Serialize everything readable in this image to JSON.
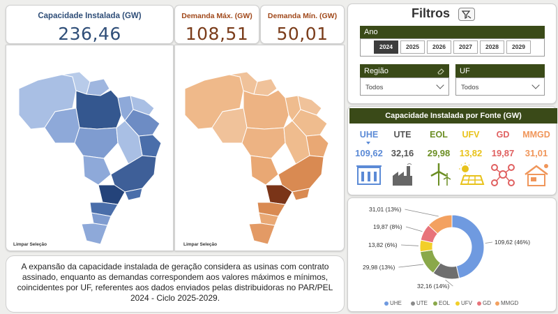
{
  "kpis": {
    "capacity": {
      "title": "Capacidade Instalada (GW)",
      "value": "236,46"
    },
    "demand_max": {
      "title": "Demanda Máx. (GW)",
      "value": "108,51"
    },
    "demand_min": {
      "title": "Demanda Mín. (GW)",
      "value": "50,01"
    }
  },
  "maps": {
    "left_clear": "Limpar Seleção",
    "right_clear": "Limpar Seleção"
  },
  "description": "A expansão da capacidade instalada de geração considera as usinas com contrato assinado, enquanto as demandas correspondem aos valores máximos e mínimos, coincidentes por UF, referentes aos dados enviados pelas distribuidoras no PAR/PEL 2024 - Ciclo 2025-2029.",
  "filters": {
    "title": "Filtros",
    "year_label": "Ano",
    "years": [
      "2024",
      "2025",
      "2026",
      "2027",
      "2028",
      "2029"
    ],
    "selected_year": "2024",
    "region_label": "Região",
    "region_value": "Todos",
    "uf_label": "UF",
    "uf_value": "Todos"
  },
  "capacity_by_source": {
    "title": "Capacidade Instalada por Fonte (GW)",
    "sources": [
      {
        "name": "UHE",
        "value": "109,62",
        "color": "#5b8ad6",
        "icon": "hydro-icon"
      },
      {
        "name": "UTE",
        "value": "32,16",
        "color": "#555555",
        "icon": "thermal-icon"
      },
      {
        "name": "EOL",
        "value": "29,98",
        "color": "#6b8e23",
        "icon": "wind-icon"
      },
      {
        "name": "UFV",
        "value": "13,82",
        "color": "#e8c21a",
        "icon": "solar-icon"
      },
      {
        "name": "GD",
        "value": "19,87",
        "color": "#e06060",
        "icon": "distributed-generation-icon"
      },
      {
        "name": "MMGD",
        "value": "31,01",
        "color": "#f0965a",
        "icon": "home-solar-icon"
      }
    ]
  },
  "chart_data": {
    "type": "pie",
    "categories": [
      "UHE",
      "UTE",
      "EOL",
      "UFV",
      "GD",
      "MMGD"
    ],
    "values": [
      109.62,
      32.16,
      29.98,
      13.82,
      19.87,
      31.01
    ],
    "labels": [
      "109,62 (46%)",
      "32,16 (14%)",
      "29,98 (13%)",
      "13,82 (6%)",
      "19,87 (8%)",
      "31,01 (13%)"
    ],
    "colors": [
      "#6f9ae0",
      "#6e6e6e",
      "#8aa84a",
      "#f2cf2a",
      "#e8737a",
      "#f3a160"
    ],
    "donut": true,
    "legend_position": "bottom"
  }
}
